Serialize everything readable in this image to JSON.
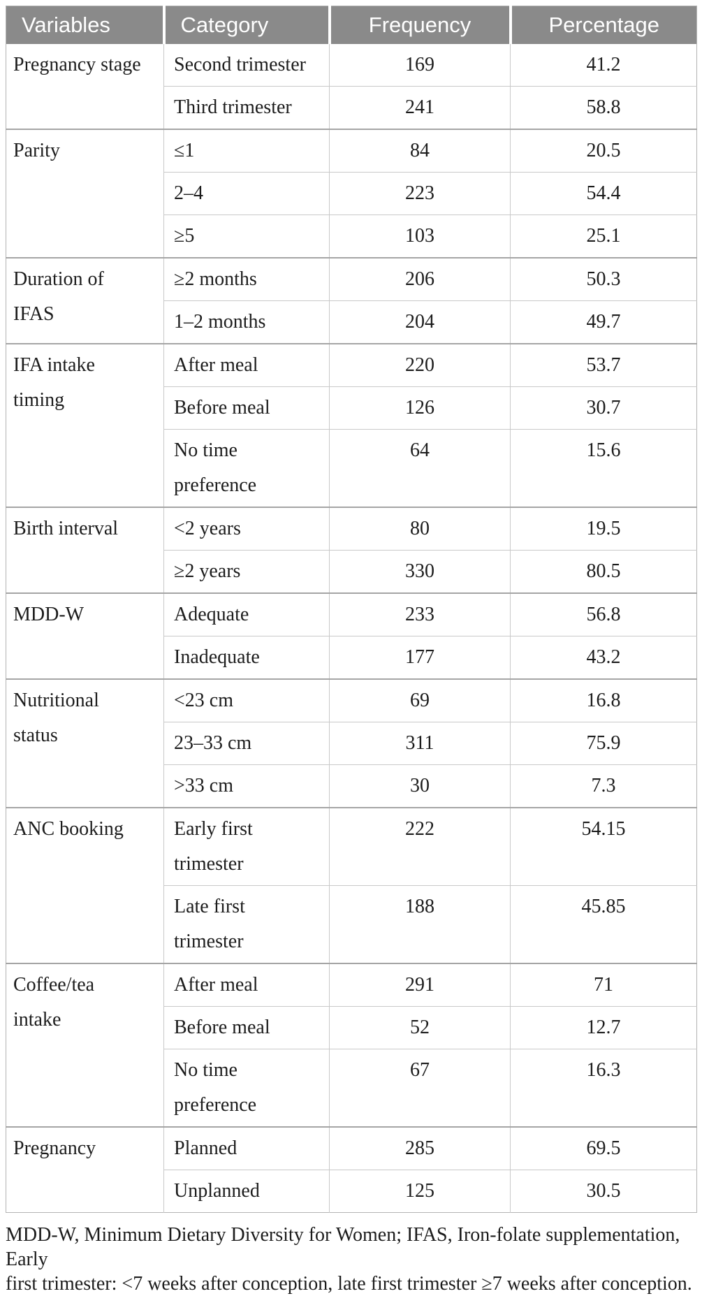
{
  "table": {
    "columns": [
      "Variables",
      "Category",
      "Frequency",
      "Percentage"
    ],
    "groups": [
      {
        "variable": "Pregnancy stage",
        "rows": [
          {
            "category": "Second trimester",
            "frequency": "169",
            "percentage": "41.2"
          },
          {
            "category": "Third trimester",
            "frequency": "241",
            "percentage": "58.8"
          }
        ]
      },
      {
        "variable": "Parity",
        "rows": [
          {
            "category": "≤1",
            "frequency": "84",
            "percentage": "20.5"
          },
          {
            "category": "2–4",
            "frequency": "223",
            "percentage": "54.4"
          },
          {
            "category": "≥5",
            "frequency": "103",
            "percentage": "25.1"
          }
        ]
      },
      {
        "variable": "Duration of\nIFAS",
        "rows": [
          {
            "category": "≥2 months",
            "frequency": "206",
            "percentage": "50.3"
          },
          {
            "category": "1–2 months",
            "frequency": "204",
            "percentage": "49.7"
          }
        ]
      },
      {
        "variable": "IFA intake\ntiming",
        "rows": [
          {
            "category": "After meal",
            "frequency": "220",
            "percentage": "53.7"
          },
          {
            "category": "Before meal",
            "frequency": "126",
            "percentage": "30.7"
          },
          {
            "category": "No time\npreference",
            "frequency": "64",
            "percentage": "15.6"
          }
        ]
      },
      {
        "variable": "Birth interval",
        "rows": [
          {
            "category": "<2 years",
            "frequency": "80",
            "percentage": "19.5"
          },
          {
            "category": "≥2 years",
            "frequency": "330",
            "percentage": "80.5"
          }
        ]
      },
      {
        "variable": "MDD-W",
        "rows": [
          {
            "category": "Adequate",
            "frequency": "233",
            "percentage": "56.8"
          },
          {
            "category": "Inadequate",
            "frequency": "177",
            "percentage": "43.2"
          }
        ]
      },
      {
        "variable": "Nutritional\nstatus",
        "rows": [
          {
            "category": "<23 cm",
            "frequency": "69",
            "percentage": "16.8"
          },
          {
            "category": "23–33 cm",
            "frequency": "311",
            "percentage": "75.9"
          },
          {
            "category": ">33 cm",
            "frequency": "30",
            "percentage": "7.3"
          }
        ]
      },
      {
        "variable": "ANC booking",
        "rows": [
          {
            "category": "Early first\ntrimester",
            "frequency": "222",
            "percentage": "54.15"
          },
          {
            "category": "Late first\ntrimester",
            "frequency": "188",
            "percentage": "45.85"
          }
        ]
      },
      {
        "variable": "Coffee/tea\nintake",
        "rows": [
          {
            "category": "After meal",
            "frequency": "291",
            "percentage": "71"
          },
          {
            "category": "Before meal",
            "frequency": "52",
            "percentage": "12.7"
          },
          {
            "category": "No time\npreference",
            "frequency": "67",
            "percentage": "16.3"
          }
        ]
      },
      {
        "variable": "Pregnancy",
        "rows": [
          {
            "category": "Planned",
            "frequency": "285",
            "percentage": "69.5"
          },
          {
            "category": "Unplanned",
            "frequency": "125",
            "percentage": "30.5"
          }
        ]
      }
    ]
  },
  "footnote": "MDD-W, Minimum Dietary Diversity for Women; IFAS, Iron-folate supplementation, Early\nfirst trimester: <7 weeks after conception, late first trimester ≥7 weeks after conception.",
  "colors": {
    "header_bg": "#8a8a8a",
    "header_text": "#ffffff",
    "body_text": "#1c1c1c",
    "group_line": "#a5a5a5",
    "sub_line": "#c9c9c9"
  }
}
